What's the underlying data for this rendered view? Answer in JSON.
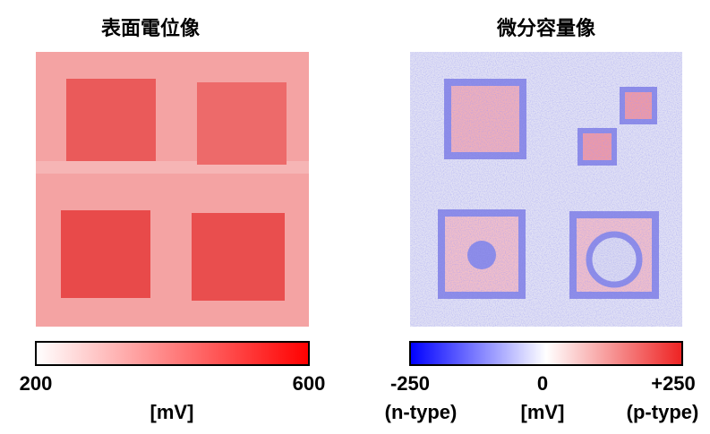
{
  "panels": [
    {
      "title": "表面電位像",
      "colorbar": {
        "left_label": "200",
        "right_label": "600",
        "unit": "[mV]"
      }
    },
    {
      "title": "微分容量像",
      "colorbar": {
        "left_label": "-250",
        "center_label": "0",
        "right_label": "+250",
        "unit": "[mV]",
        "left_note": "(n-type)",
        "right_note": "(p-type)"
      }
    }
  ]
}
